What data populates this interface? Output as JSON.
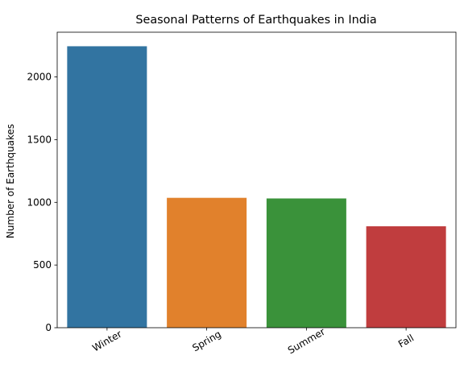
{
  "chart_data": {
    "type": "bar",
    "title": "Seasonal Patterns of Earthquakes in India",
    "xlabel": "",
    "ylabel": "Number of Earthquakes",
    "categories": [
      "Winter",
      "Spring",
      "Summer",
      "Fall"
    ],
    "values": [
      2245,
      1036,
      1031,
      809
    ],
    "colors": [
      "#3274a1",
      "#e1812c",
      "#3a923a",
      "#c03d3e"
    ],
    "ylim": [
      0,
      2357
    ],
    "yticks": [
      0,
      500,
      1000,
      1500,
      2000
    ],
    "ytick_labels": [
      "0",
      "500",
      "1000",
      "1500",
      "2000"
    ],
    "xtick_rotation": 30,
    "grid": false,
    "legend": "none"
  }
}
